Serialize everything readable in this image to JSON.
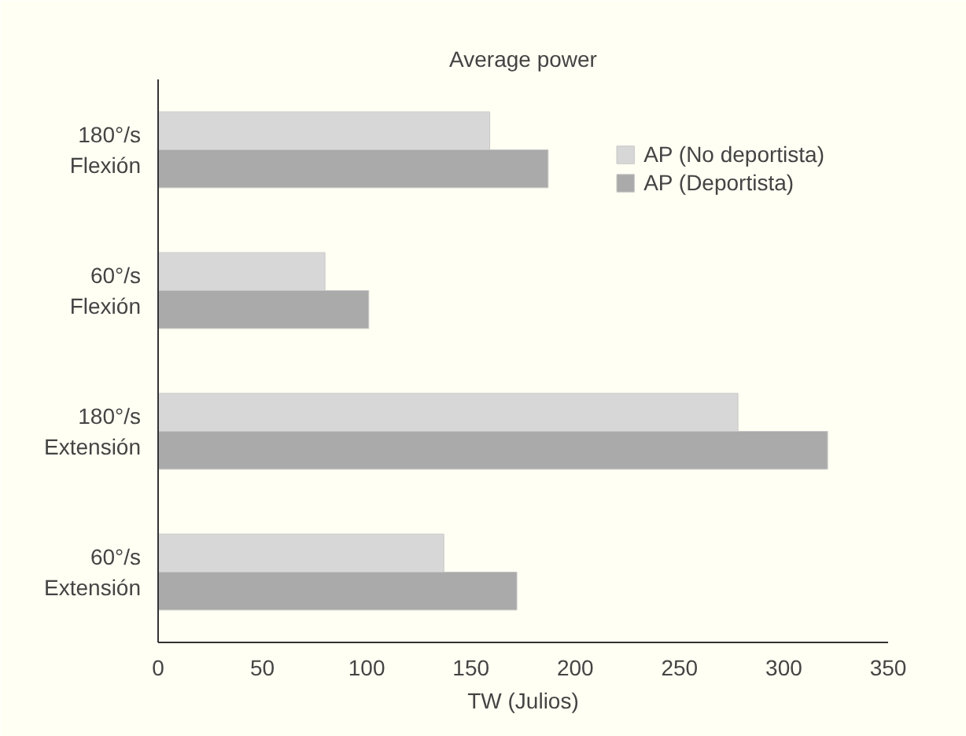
{
  "chart_data": {
    "type": "bar",
    "orientation": "horizontal",
    "title": "Average power",
    "xlabel": "TW (Julios)",
    "categories": [
      "180°/s\nFlexión",
      "60°/s\nFlexión",
      "180°/s\nExtensión",
      "60°/s\nExtensión"
    ],
    "series": [
      {
        "name": "AP (No deportista)",
        "color": "#d7d7d7",
        "values": [
          159,
          80,
          278,
          137
        ]
      },
      {
        "name": "AP (Deportista)",
        "color": "#aaaaaa",
        "values": [
          187,
          101,
          321,
          172
        ]
      }
    ],
    "xlim": [
      0,
      350
    ],
    "xticks": [
      0,
      50,
      100,
      150,
      200,
      250,
      300,
      350
    ],
    "grid": false,
    "legend": "top right"
  }
}
